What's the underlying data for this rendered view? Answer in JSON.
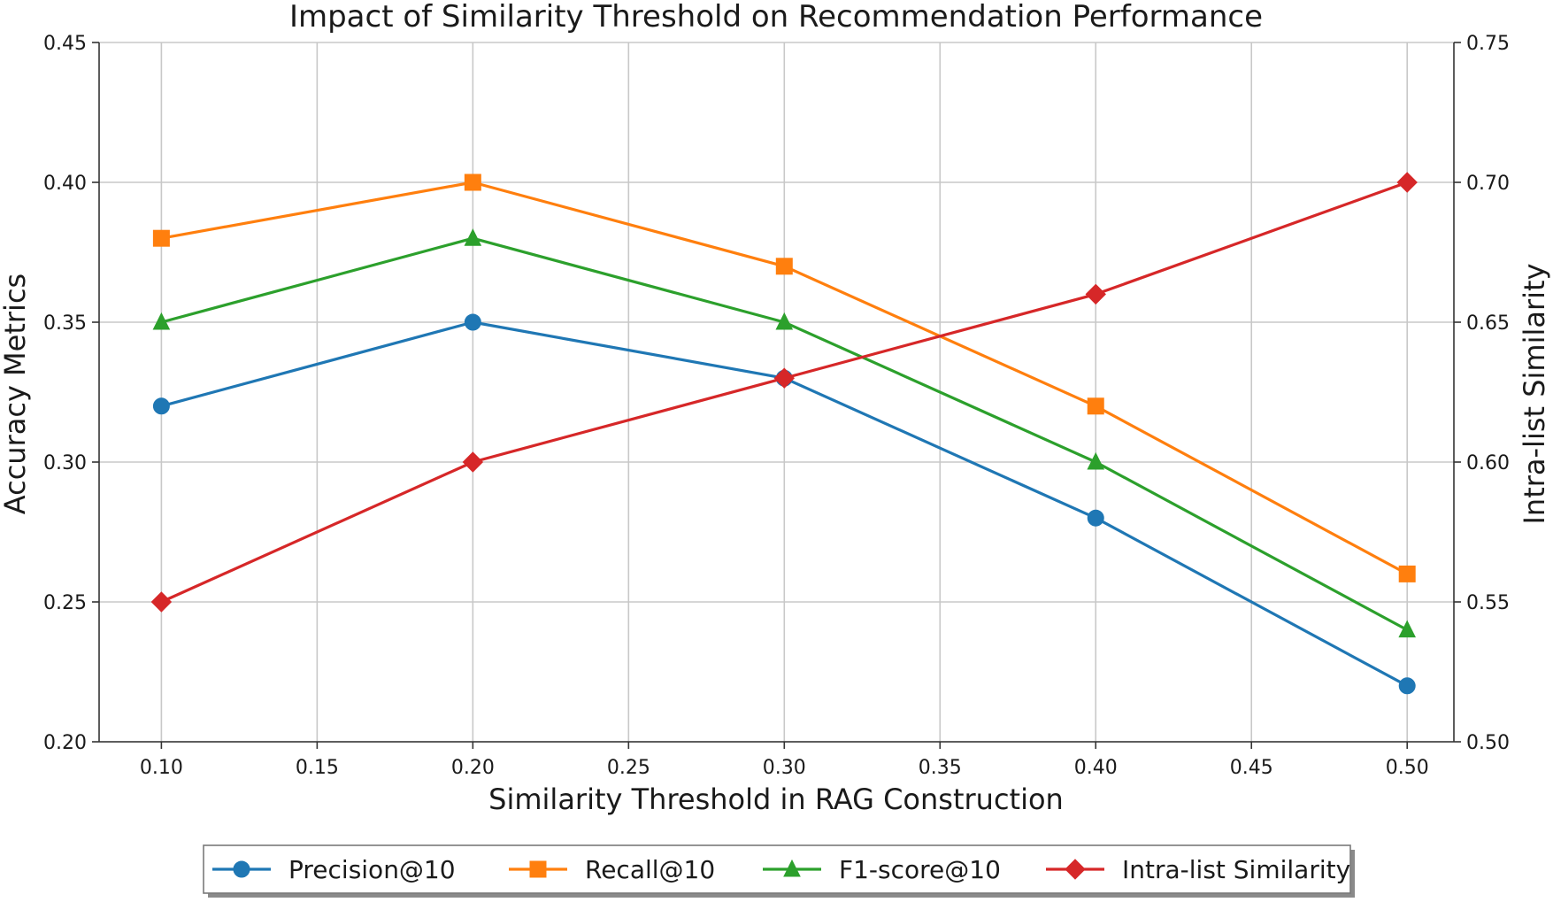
{
  "chart_data": {
    "type": "line",
    "title": "Impact of Similarity Threshold on Recommendation Performance",
    "xlabel": "Similarity Threshold in RAG Construction",
    "ylabel": "Accuracy Metrics",
    "y2label": "Intra-list Similarity",
    "xlim": [
      0.08,
      0.515
    ],
    "ylim": [
      0.2,
      0.45
    ],
    "y2lim": [
      0.5,
      0.75
    ],
    "x_ticks": [
      "0.10",
      "0.15",
      "0.20",
      "0.25",
      "0.30",
      "0.35",
      "0.40",
      "0.45",
      "0.50"
    ],
    "y_ticks": [
      "0.20",
      "0.25",
      "0.30",
      "0.35",
      "0.40",
      "0.45"
    ],
    "y2_ticks": [
      "0.50",
      "0.55",
      "0.60",
      "0.65",
      "0.70",
      "0.75"
    ],
    "grid": true,
    "legend_position": "bottom-center",
    "x": [
      0.1,
      0.2,
      0.3,
      0.4,
      0.5
    ],
    "series": [
      {
        "name": "Precision@10",
        "axis": "left",
        "color": "#1f77b4",
        "marker": "circle",
        "values": [
          0.32,
          0.35,
          0.33,
          0.28,
          0.22
        ]
      },
      {
        "name": "Recall@10",
        "axis": "left",
        "color": "#ff7f0e",
        "marker": "square",
        "values": [
          0.38,
          0.4,
          0.37,
          0.32,
          0.26
        ]
      },
      {
        "name": "F1-score@10",
        "axis": "left",
        "color": "#2ca02c",
        "marker": "triangle",
        "values": [
          0.35,
          0.38,
          0.35,
          0.3,
          0.24
        ]
      },
      {
        "name": "Intra-list Similarity",
        "axis": "right",
        "color": "#d62728",
        "marker": "diamond",
        "values": [
          0.55,
          0.6,
          0.63,
          0.66,
          0.7
        ]
      }
    ]
  }
}
